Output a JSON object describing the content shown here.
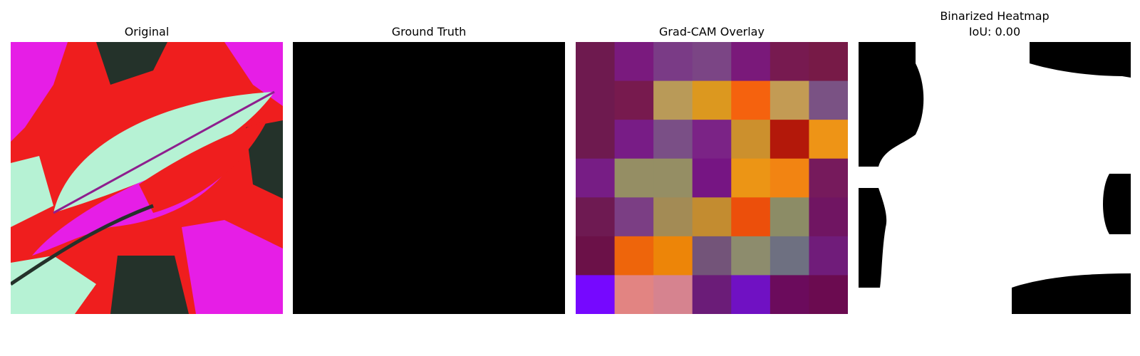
{
  "panels": {
    "original": {
      "title": "Original"
    },
    "ground_truth": {
      "title": "Ground Truth",
      "fill": "#000000"
    },
    "gradcam": {
      "title": "Grad-CAM Overlay",
      "grid": [
        [
          "#6e1a4f",
          "#7a1a7e",
          "#7a3b86",
          "#7b4585",
          "#7a197a",
          "#771a50",
          "#771a47"
        ],
        [
          "#6e1a4f",
          "#771a4e",
          "#b99a58",
          "#dc981f",
          "#f5620e",
          "#c39b54",
          "#7a5284"
        ],
        [
          "#6e1a4f",
          "#781c86",
          "#7a4f86",
          "#7b2386",
          "#cc902d",
          "#b3180a",
          "#ee9416"
        ],
        [
          "#771d85",
          "#958e64",
          "#958e64",
          "#761583",
          "#ec9515",
          "#f28412",
          "#761a5c"
        ],
        [
          "#6e1a52",
          "#7b3e84",
          "#a38b55",
          "#c38c30",
          "#ec4f0b",
          "#8c8c66",
          "#701562"
        ],
        [
          "#6b1148",
          "#ee650b",
          "#ed8508",
          "#735479",
          "#8d8c6d",
          "#6e7081",
          "#701c7a"
        ],
        [
          "#7608ff",
          "#e28482",
          "#d6838f",
          "#6b1c78",
          "#7011c3",
          "#6b0b5c",
          "#6b0b50"
        ]
      ]
    },
    "binarized": {
      "title": "Binarized Heatmap",
      "iou": "IoU: 0.00"
    }
  },
  "colors": {
    "panel_original_leaf_light": "#b6f2d4",
    "panel_original_magenta": "#e61ee6",
    "panel_original_red": "#ef1e1e",
    "panel_original_dark": "#24322a"
  }
}
